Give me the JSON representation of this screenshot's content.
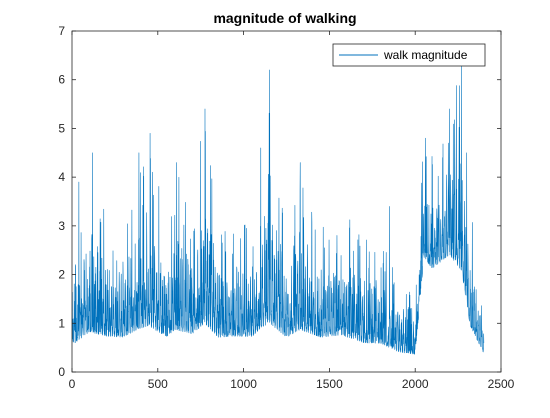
{
  "chart_data": {
    "type": "line",
    "title": "magnitude of walking",
    "xlabel": "",
    "ylabel": "",
    "xlim": [
      0,
      2500
    ],
    "ylim": [
      0,
      7
    ],
    "xticks": [
      0,
      500,
      1000,
      1500,
      2000,
      2500
    ],
    "yticks": [
      0,
      1,
      2,
      3,
      4,
      5,
      6,
      7
    ],
    "xtick_labels": [
      "0",
      "500",
      "1000",
      "1500",
      "2000",
      "2500"
    ],
    "ytick_labels": [
      "0",
      "1",
      "2",
      "3",
      "4",
      "5",
      "6",
      "7"
    ],
    "grid": false,
    "legend_position": "top-right",
    "colors": {
      "series": "#0072bd",
      "axes": "#262626",
      "background": "#ffffff"
    },
    "series": [
      {
        "name": "walk magnitude",
        "x_start": 1,
        "x_end": 2400,
        "x_step": 1,
        "approx_num_points": 2400,
        "typical_range": [
          0.3,
          3.0
        ],
        "envelope": [
          {
            "x": 0,
            "min": 0.3,
            "max": 2.4
          },
          {
            "x": 100,
            "min": 0.4,
            "max": 3.9
          },
          {
            "x": 120,
            "min": 0.3,
            "max": 4.5
          },
          {
            "x": 200,
            "min": 0.4,
            "max": 3.2
          },
          {
            "x": 300,
            "min": 0.4,
            "max": 3.0
          },
          {
            "x": 390,
            "min": 0.4,
            "max": 4.5
          },
          {
            "x": 450,
            "min": 0.4,
            "max": 4.9
          },
          {
            "x": 550,
            "min": 0.4,
            "max": 3.1
          },
          {
            "x": 600,
            "min": 0.4,
            "max": 4.3
          },
          {
            "x": 700,
            "min": 0.4,
            "max": 3.6
          },
          {
            "x": 775,
            "min": 0.4,
            "max": 5.4
          },
          {
            "x": 850,
            "min": 0.4,
            "max": 3.0
          },
          {
            "x": 950,
            "min": 0.4,
            "max": 3.2
          },
          {
            "x": 1050,
            "min": 0.4,
            "max": 3.1
          },
          {
            "x": 1100,
            "min": 0.4,
            "max": 4.6
          },
          {
            "x": 1150,
            "min": 0.3,
            "max": 6.2
          },
          {
            "x": 1250,
            "min": 0.4,
            "max": 3.0
          },
          {
            "x": 1330,
            "min": 0.4,
            "max": 4.3
          },
          {
            "x": 1450,
            "min": 0.4,
            "max": 3.0
          },
          {
            "x": 1570,
            "min": 0.4,
            "max": 3.4
          },
          {
            "x": 1700,
            "min": 0.3,
            "max": 2.8
          },
          {
            "x": 1800,
            "min": 0.3,
            "max": 2.7
          },
          {
            "x": 1900,
            "min": 0.2,
            "max": 2.0
          },
          {
            "x": 2000,
            "min": 0.2,
            "max": 1.5
          },
          {
            "x": 2050,
            "min": 2.0,
            "max": 4.8
          },
          {
            "x": 2100,
            "min": 1.8,
            "max": 4.5
          },
          {
            "x": 2200,
            "min": 2.0,
            "max": 5.4
          },
          {
            "x": 2270,
            "min": 1.5,
            "max": 6.3
          },
          {
            "x": 2320,
            "min": 0.6,
            "max": 3.5
          },
          {
            "x": 2400,
            "min": 0.3,
            "max": 1.0
          }
        ],
        "peaks": [
          {
            "x": 40,
            "y": 3.9
          },
          {
            "x": 120,
            "y": 4.5
          },
          {
            "x": 390,
            "y": 4.5
          },
          {
            "x": 455,
            "y": 4.9
          },
          {
            "x": 610,
            "y": 4.3
          },
          {
            "x": 775,
            "y": 5.4
          },
          {
            "x": 1100,
            "y": 4.6
          },
          {
            "x": 1152,
            "y": 6.2
          },
          {
            "x": 1330,
            "y": 4.3
          },
          {
            "x": 1850,
            "y": 3.4
          },
          {
            "x": 2060,
            "y": 4.8
          },
          {
            "x": 2200,
            "y": 5.4
          },
          {
            "x": 2270,
            "y": 6.3
          },
          {
            "x": 2300,
            "y": 4.5
          }
        ]
      }
    ]
  }
}
